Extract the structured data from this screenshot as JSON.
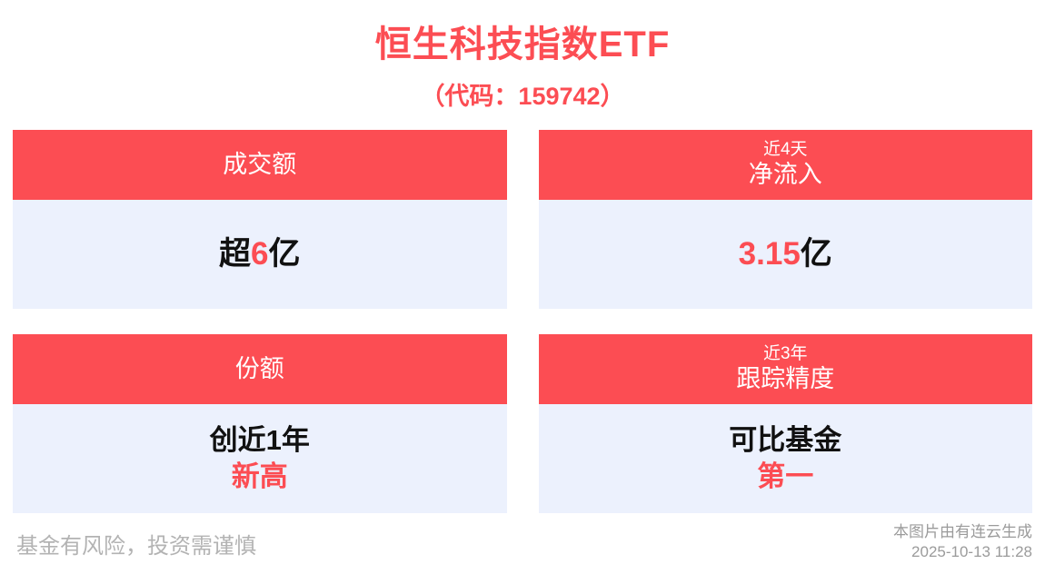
{
  "colors": {
    "accent_red": "#FC4D53",
    "card_body_bg": "#ECF1FD",
    "text_black": "#111111",
    "footer_gray": "#9B9B9B",
    "footer_gray_light": "#B3B3B3"
  },
  "header": {
    "title": "恒生科技指数ETF",
    "subtitle": "（代码：159742）"
  },
  "cards": [
    {
      "id": "turnover",
      "header_lines": [
        "成交额"
      ],
      "value": {
        "prefix": "超",
        "highlight": "6",
        "suffix": "亿"
      }
    },
    {
      "id": "net-inflow",
      "header_lines": [
        "近4天",
        "净流入"
      ],
      "value": {
        "highlight": "3.15",
        "suffix": "亿"
      }
    },
    {
      "id": "shares",
      "header_lines": [
        "份额"
      ],
      "value_lines": [
        {
          "text": "创近1年",
          "color": "black"
        },
        {
          "text": "新高",
          "color": "red"
        }
      ]
    },
    {
      "id": "tracking-accuracy",
      "header_lines": [
        "近3年",
        "跟踪精度"
      ],
      "value_lines": [
        {
          "text": "可比基金",
          "color": "black"
        },
        {
          "text": "第一",
          "color": "red"
        }
      ]
    }
  ],
  "footer": {
    "disclaimer": "基金有风险，投资需谨慎",
    "credit": "本图片由有连云生成",
    "timestamp": "2025-10-13 11:28"
  },
  "chart_data": {
    "type": "table",
    "title": "恒生科技指数ETF（代码：159742）",
    "categories": [
      "成交额",
      "近4天净流入",
      "份额",
      "近3年跟踪精度"
    ],
    "values": [
      "超6亿",
      "3.15亿",
      "创近1年新高",
      "可比基金第一"
    ],
    "legend_position": "none",
    "grid": false
  }
}
